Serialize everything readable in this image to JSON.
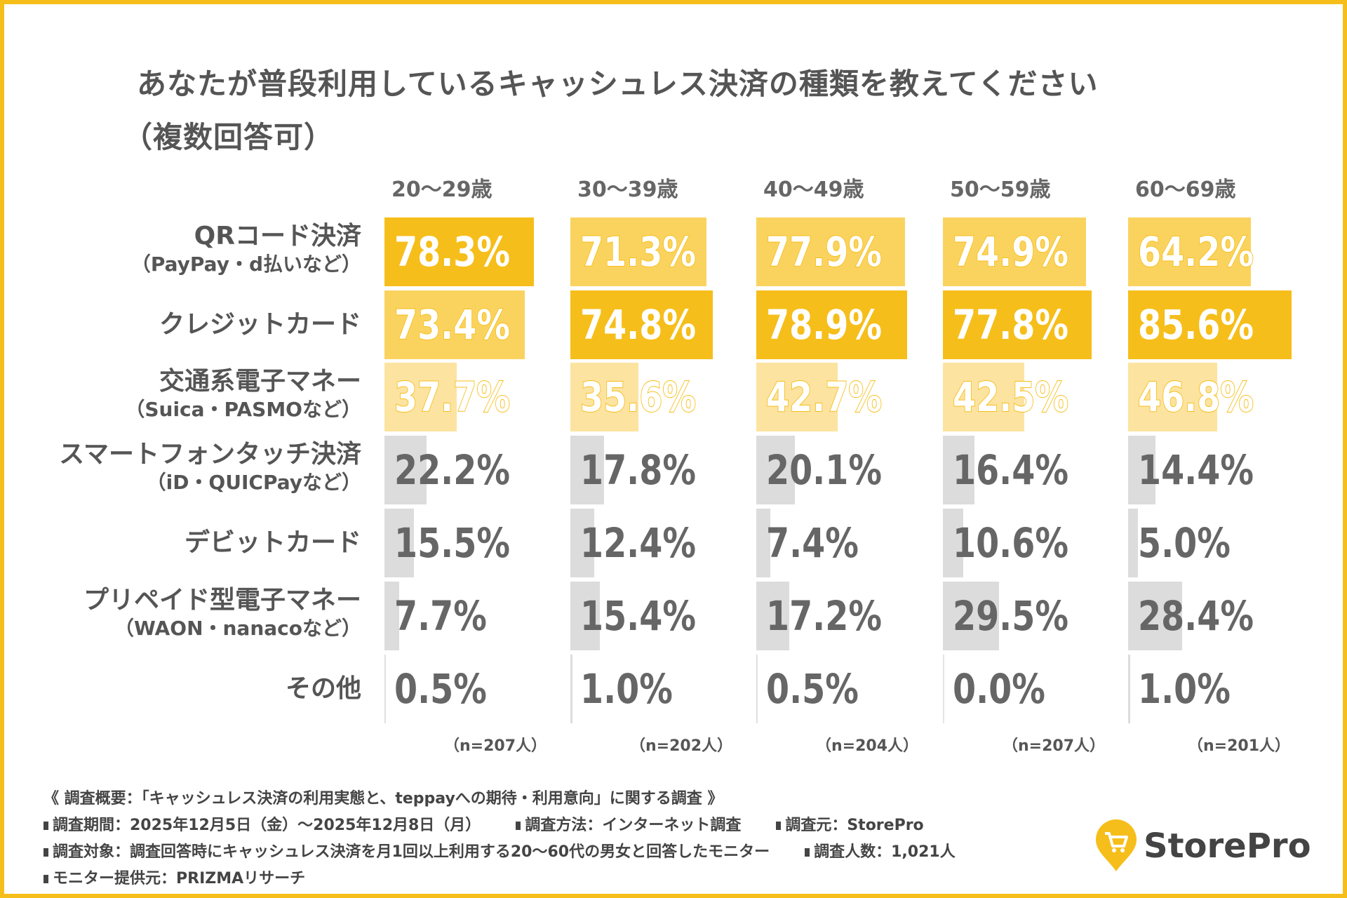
{
  "chart_data": {
    "type": "bar",
    "orientation": "horizontal",
    "title": "あなたが普段利用しているキャッシュレス決済の種類を教えてください",
    "subtitle": "（複数回答可）",
    "categories": [
      {
        "main": "QRコード決済",
        "sub": "（PayPay・d払いなど）"
      },
      {
        "main": "クレジットカード",
        "sub": ""
      },
      {
        "main": "交通系電子マネー",
        "sub": "（Suica・PASMOなど）"
      },
      {
        "main": "スマートフォンタッチ決済",
        "sub": "（iD・QUICPayなど）"
      },
      {
        "main": "デビットカード",
        "sub": ""
      },
      {
        "main": "プリペイド型電子マネー",
        "sub": "（WAON・nanacoなど）"
      },
      {
        "main": "その他",
        "sub": ""
      }
    ],
    "series": [
      {
        "name": "20〜29歳",
        "n_label": "（n=207人）",
        "values": [
          78.3,
          73.4,
          37.7,
          22.2,
          15.5,
          7.7,
          0.5
        ],
        "labels": [
          "78.3%",
          "73.4%",
          "37.7%",
          "22.2%",
          "15.5%",
          "7.7%",
          "0.5%"
        ]
      },
      {
        "name": "30〜39歳",
        "n_label": "（n=202人）",
        "values": [
          71.3,
          74.8,
          35.6,
          17.8,
          12.4,
          15.4,
          1.0
        ],
        "labels": [
          "71.3%",
          "74.8%",
          "35.6%",
          "17.8%",
          "12.4%",
          "15.4%",
          "1.0%"
        ]
      },
      {
        "name": "40〜49歳",
        "n_label": "（n=204人）",
        "values": [
          77.9,
          78.9,
          42.7,
          20.1,
          7.4,
          17.2,
          0.5
        ],
        "labels": [
          "77.9%",
          "78.9%",
          "42.7%",
          "20.1%",
          "7.4%",
          "17.2%",
          "0.5%"
        ]
      },
      {
        "name": "50〜59歳",
        "n_label": "（n=207人）",
        "values": [
          74.9,
          77.8,
          42.5,
          16.4,
          10.6,
          29.5,
          0.0
        ],
        "labels": [
          "74.9%",
          "77.8%",
          "42.5%",
          "16.4%",
          "10.6%",
          "29.5%",
          "0.0%"
        ]
      },
      {
        "name": "60〜69歳",
        "n_label": "（n=201人）",
        "values": [
          64.2,
          85.6,
          46.8,
          14.4,
          5.0,
          28.4,
          1.0
        ],
        "labels": [
          "64.2%",
          "85.6%",
          "46.8%",
          "14.4%",
          "5.0%",
          "28.4%",
          "1.0%"
        ]
      }
    ],
    "xlim": [
      0,
      100
    ],
    "grid": false,
    "legend": "none",
    "colors": {
      "rank1": "#F6BE1A",
      "rank2": "#FAD35F",
      "rank3": "#FCE3A0",
      "other": "#DCDCDC",
      "frame": "#F6BE1A"
    }
  },
  "footer": {
    "heading": "《 調査概要：「キャッシュレス決済の利用実態と、teppayへの期待・利用意向」に関する調査 》",
    "period": "調査期間：2025年12月5日（金）〜2025年12月8日（月）",
    "method": "調査方法：インターネット調査",
    "source": "調査元：StorePro",
    "target": "調査対象：調査回答時にキャッシュレス決済を月1回以上利用する20〜60代の男女と回答したモニター",
    "count": "調査人数：1,021人",
    "provider": "モニター提供元：PRIZMAリサーチ"
  },
  "logo": {
    "text": "StorePro",
    "icon": "shopping-cart-pin-icon"
  }
}
